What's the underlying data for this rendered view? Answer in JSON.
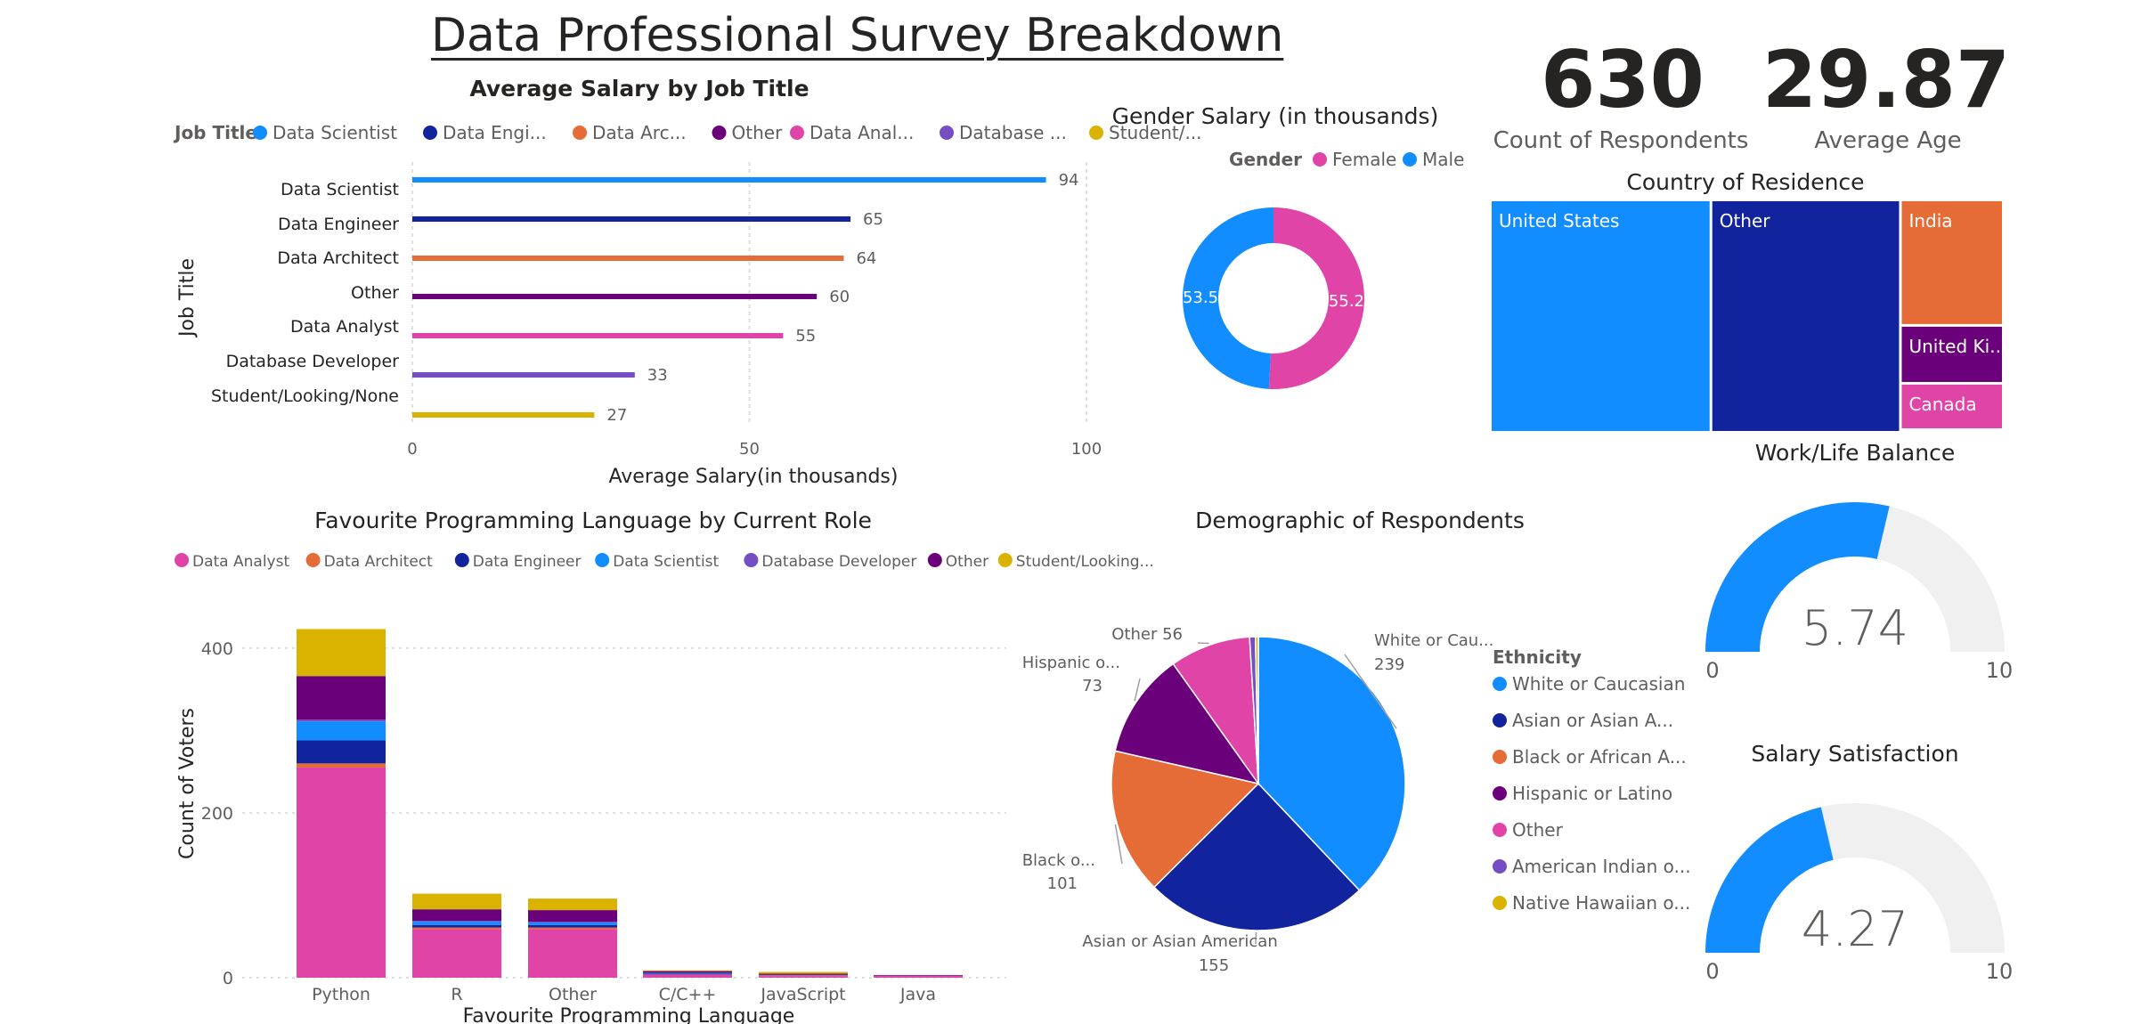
{
  "page_title": "Data Professional Survey Breakdown",
  "colors": {
    "data_scientist": "#118DFF",
    "data_engineer": "#12239E",
    "data_architect": "#E66C37",
    "other": "#6B007B",
    "data_analyst": "#E044A7",
    "database_developer": "#744EC2",
    "student": "#D9B300",
    "gauge_bg": "#F0F0F0"
  },
  "chart_data": [
    {
      "id": "salary_by_job",
      "type": "bar",
      "orientation": "horizontal",
      "title": "Average Salary by Job Title",
      "legend_title": "Job Title",
      "legend": [
        "Data Scientist",
        "Data Engi...",
        "Data Arc...",
        "Other",
        "Data Anal...",
        "Database ...",
        "Student/..."
      ],
      "legend_colors": [
        "#118DFF",
        "#12239E",
        "#E66C37",
        "#6B007B",
        "#E044A7",
        "#744EC2",
        "#D9B300"
      ],
      "categories": [
        "Data Scientist",
        "Data Engineer",
        "Data Architect",
        "Other",
        "Data Analyst",
        "Database Developer",
        "Student/Looking/None"
      ],
      "values": [
        94,
        65,
        64,
        60,
        55,
        33,
        27
      ],
      "bar_colors": [
        "#118DFF",
        "#12239E",
        "#E66C37",
        "#6B007B",
        "#E044A7",
        "#744EC2",
        "#D9B300"
      ],
      "xlabel": "Average Salary(in thousands)",
      "ylabel": "Job Title",
      "xlim": [
        0,
        100
      ],
      "xticks": [
        0,
        50,
        100
      ],
      "grid": true
    },
    {
      "id": "gender_salary",
      "type": "pie",
      "variant": "donut",
      "title": "Gender Salary (in thousands)",
      "legend_title": "Gender",
      "legend": [
        "Female",
        "Male"
      ],
      "values": [
        55.2,
        53.5
      ],
      "labels": [
        "55.2",
        "53.5"
      ],
      "colors": [
        "#E044A7",
        "#118DFF"
      ]
    },
    {
      "id": "count_respondents",
      "type": "card",
      "value": "630",
      "label": "Count of Respondents"
    },
    {
      "id": "average_age",
      "type": "card",
      "value": "29.87",
      "label": "Average Age"
    },
    {
      "id": "country_residence",
      "type": "treemap",
      "title": "Country of Residence",
      "categories": [
        "United States",
        "Other",
        "India",
        "United Ki...",
        "Canada"
      ],
      "values": [
        262,
        225,
        65,
        30,
        24
      ],
      "colors": [
        "#118DFF",
        "#12239E",
        "#E66C37",
        "#6B007B",
        "#E044A7"
      ]
    },
    {
      "id": "work_life_balance",
      "type": "gauge",
      "title": "Work/Life Balance",
      "value": 5.74,
      "value_label": "5.74",
      "min": 0,
      "max": 10,
      "min_label": "0",
      "max_label": "10"
    },
    {
      "id": "salary_satisfaction",
      "type": "gauge",
      "title": "Salary Satisfaction",
      "value": 4.27,
      "value_label": "4.27",
      "min": 0,
      "max": 10,
      "min_label": "0",
      "max_label": "10"
    },
    {
      "id": "fav_language",
      "type": "bar",
      "stacked": true,
      "title": "Favourite Programming Language by Current Role",
      "legend": [
        "Data Analyst",
        "Data Architect",
        "Data Engineer",
        "Data Scientist",
        "Database Developer",
        "Other",
        "Student/Looking..."
      ],
      "categories": [
        "Python",
        "R",
        "Other",
        "C/C++",
        "JavaScript",
        "Java"
      ],
      "series": [
        {
          "name": "Data Analyst",
          "color": "#E044A7",
          "values": [
            255,
            59,
            59,
            4,
            2,
            2
          ]
        },
        {
          "name": "Data Architect",
          "color": "#E66C37",
          "values": [
            5,
            2,
            2,
            0,
            1,
            0
          ]
        },
        {
          "name": "Data Engineer",
          "color": "#12239E",
          "values": [
            28,
            3,
            3,
            1,
            1,
            0
          ]
        },
        {
          "name": "Data Scientist",
          "color": "#118DFF",
          "values": [
            23,
            4,
            3,
            1,
            0,
            0
          ]
        },
        {
          "name": "Database Developer",
          "color": "#744EC2",
          "values": [
            2,
            1,
            1,
            0,
            0,
            0
          ]
        },
        {
          "name": "Other",
          "color": "#6B007B",
          "values": [
            53,
            14,
            14,
            2,
            1,
            1
          ]
        },
        {
          "name": "Student/Looking...",
          "color": "#D9B300",
          "values": [
            57,
            19,
            14,
            1,
            2,
            0
          ]
        }
      ],
      "xlabel": "Favourite Programming Language",
      "ylabel": "Count of Voters",
      "ylim": [
        0,
        430
      ],
      "yticks": [
        0,
        200,
        400
      ],
      "grid": true
    },
    {
      "id": "demographics",
      "type": "pie",
      "title": "Demographic of Respondents",
      "legend_title": "Ethnicity",
      "legend": [
        "White or Caucasian",
        "Asian or Asian A...",
        "Black or African A...",
        "Hispanic or Latino",
        "Other",
        "American Indian o...",
        "Native Hawaiian o..."
      ],
      "values": [
        239,
        155,
        101,
        73,
        56,
        4,
        2
      ],
      "colors": [
        "#118DFF",
        "#12239E",
        "#E66C37",
        "#6B007B",
        "#E044A7",
        "#744EC2",
        "#D9B300"
      ],
      "data_labels": [
        {
          "name": "White or Cau...",
          "value": "239"
        },
        {
          "name": "Asian or Asian American",
          "value": "155"
        },
        {
          "name": "Black o...",
          "value": "101"
        },
        {
          "name": "Hispanic o...",
          "value": "73"
        },
        {
          "name": "Other",
          "value": "56"
        }
      ]
    }
  ]
}
